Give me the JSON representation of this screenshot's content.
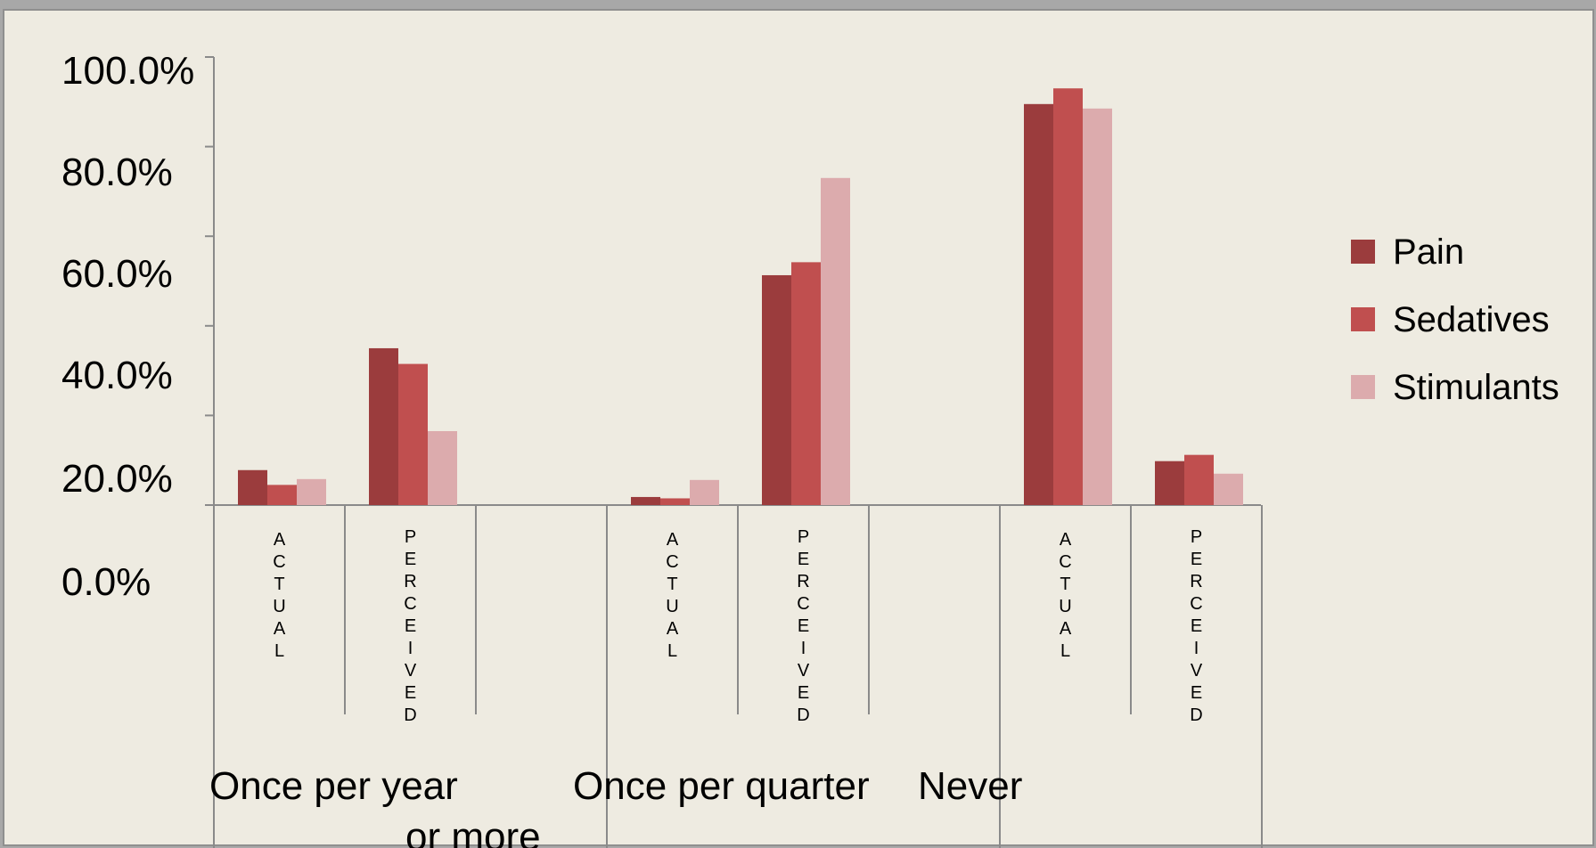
{
  "chart_data": {
    "type": "bar",
    "title": "",
    "xlabel": "",
    "ylabel": "",
    "ylim": [
      0,
      100
    ],
    "y_ticks": [
      "100.0%",
      "80.0%",
      "60.0%",
      "40.0%",
      "20.0%",
      "0.0%"
    ],
    "groups": [
      "Once per year or more",
      "Once per quarter",
      "Never"
    ],
    "categories": [
      "ACTUAL",
      "PERCEIVED",
      "ACTUAL",
      "PERCEIVED",
      "ACTUAL",
      "PERCEIVED"
    ],
    "category_group": [
      0,
      0,
      1,
      1,
      2,
      2
    ],
    "series": [
      {
        "name": "Pain",
        "color": "#9b3c3d",
        "values": [
          7.8,
          35.0,
          1.8,
          51.3,
          89.5,
          9.8
        ]
      },
      {
        "name": "Sedatives",
        "color": "#c04f4f",
        "values": [
          4.5,
          31.5,
          1.5,
          54.2,
          93.0,
          11.2
        ]
      },
      {
        "name": "Stimulants",
        "color": "#dcabad",
        "values": [
          5.8,
          16.5,
          5.6,
          73.0,
          88.5,
          7.0
        ]
      }
    ],
    "legend_position": "right",
    "grid": false
  }
}
